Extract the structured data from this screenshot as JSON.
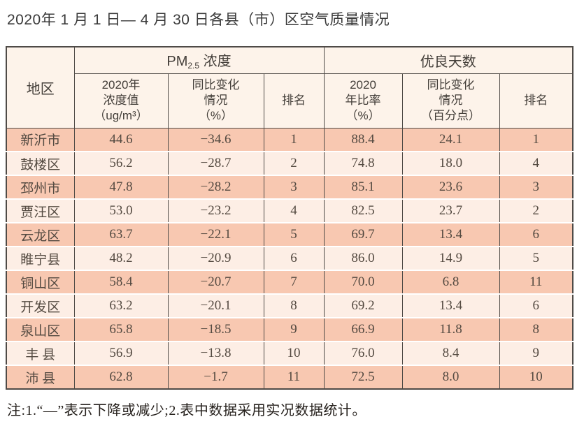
{
  "title": "2020年 1 月 1 日— 4 月 30 日各县（市）区空气质量情况",
  "note": "注:1.“—”表示下降或减少;2.表中数据采用实况数据统计。",
  "colors": {
    "row_dark": "#f8c8b1",
    "row_light": "#fdeee5",
    "header_bg": "#fdf3ea",
    "border": "#4f4b47",
    "body_text": "#544a41"
  },
  "table": {
    "corner_label": "地区",
    "group_pm": {
      "prefix": "PM",
      "subscript": "2.5",
      "suffix": " 浓度"
    },
    "group_good_days": "优良天数",
    "subheaders": [
      "2020年\n浓度值\n（ug/m³）",
      "同比变化\n情况\n（%）",
      "排名",
      "2020\n年比率\n（%）",
      "同比变化\n情况\n（百分点）",
      "排名"
    ],
    "rows": [
      [
        "新沂市",
        "44.6",
        "−34.6",
        "1",
        "88.4",
        "24.1",
        "1"
      ],
      [
        "鼓楼区",
        "56.2",
        "−28.7",
        "2",
        "74.8",
        "18.0",
        "4"
      ],
      [
        "邳州市",
        "47.8",
        "−28.2",
        "3",
        "85.1",
        "23.6",
        "3"
      ],
      [
        "贾汪区",
        "53.0",
        "−23.2",
        "4",
        "82.5",
        "23.7",
        "2"
      ],
      [
        "云龙区",
        "63.7",
        "−22.1",
        "5",
        "69.7",
        "13.4",
        "6"
      ],
      [
        "睢宁县",
        "48.2",
        "−20.9",
        "6",
        "86.0",
        "14.9",
        "5"
      ],
      [
        "铜山区",
        "58.4",
        "−20.7",
        "7",
        "70.0",
        "6.8",
        "11"
      ],
      [
        "开发区",
        "63.2",
        "−20.1",
        "8",
        "69.2",
        "13.4",
        "6"
      ],
      [
        "泉山区",
        "65.8",
        "−18.5",
        "9",
        "66.9",
        "11.8",
        "8"
      ],
      [
        "丰 县",
        "56.9",
        "−13.8",
        "10",
        "76.0",
        "8.4",
        "9"
      ],
      [
        "沛 县",
        "62.8",
        "−1.7",
        "11",
        "72.5",
        "8.0",
        "10"
      ]
    ]
  },
  "chart_data": {
    "type": "table",
    "title": "2020年 1 月 1 日— 4 月 30 日各县（市）区空气质量情况",
    "column_groups": [
      {
        "label": "PM2.5 浓度",
        "span": 3
      },
      {
        "label": "优良天数",
        "span": 3
      }
    ],
    "columns": [
      "地区",
      "2020年浓度值（ug/m³）",
      "同比变化情况（%）",
      "排名",
      "2020年比率（%）",
      "同比变化情况（百分点）",
      "排名"
    ],
    "categories": [
      "新沂市",
      "鼓楼区",
      "邳州市",
      "贾汪区",
      "云龙区",
      "睢宁县",
      "铜山区",
      "开发区",
      "泉山区",
      "丰县",
      "沛县"
    ],
    "series": [
      {
        "name": "PM2.5浓度 2020年浓度值（ug/m³）",
        "values": [
          44.6,
          56.2,
          47.8,
          53.0,
          63.7,
          48.2,
          58.4,
          63.2,
          65.8,
          56.9,
          62.8
        ]
      },
      {
        "name": "PM2.5浓度 同比变化情况（%）",
        "values": [
          -34.6,
          -28.7,
          -28.2,
          -23.2,
          -22.1,
          -20.9,
          -20.7,
          -20.1,
          -18.5,
          -13.8,
          -1.7
        ]
      },
      {
        "name": "PM2.5浓度 排名",
        "values": [
          1,
          2,
          3,
          4,
          5,
          6,
          7,
          8,
          9,
          10,
          11
        ]
      },
      {
        "name": "优良天数 2020年比率（%）",
        "values": [
          88.4,
          74.8,
          85.1,
          82.5,
          69.7,
          86.0,
          70.0,
          69.2,
          66.9,
          76.0,
          72.5
        ]
      },
      {
        "name": "优良天数 同比变化情况（百分点）",
        "values": [
          24.1,
          18.0,
          23.6,
          23.7,
          13.4,
          14.9,
          6.8,
          13.4,
          11.8,
          8.4,
          8.0
        ]
      },
      {
        "name": "优良天数 排名",
        "values": [
          1,
          4,
          3,
          2,
          6,
          5,
          11,
          6,
          8,
          9,
          10
        ]
      }
    ],
    "note": "注:1.“—”表示下降或减少;2.表中数据采用实况数据统计。"
  }
}
